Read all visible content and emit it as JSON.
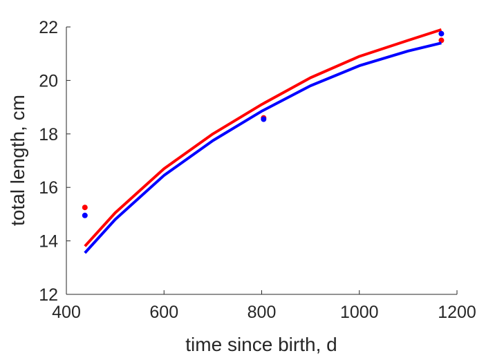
{
  "chart_data": {
    "type": "line",
    "title": "",
    "xlabel": "time since birth, d",
    "ylabel": "total length, cm",
    "xlim": [
      400,
      1200
    ],
    "ylim": [
      12,
      22
    ],
    "xticks": [
      400,
      600,
      800,
      1000,
      1200
    ],
    "yticks": [
      12,
      14,
      16,
      18,
      20,
      22
    ],
    "grid": false,
    "legend": "none",
    "series": [
      {
        "color": "#ff0000",
        "line": {
          "x": [
            438,
            500,
            600,
            700,
            800,
            900,
            1000,
            1100,
            1168
          ],
          "y": [
            13.8,
            15.05,
            16.7,
            18.0,
            19.1,
            20.1,
            20.9,
            21.5,
            21.9
          ]
        },
        "points": {
          "x": [
            438,
            804,
            1168
          ],
          "y": [
            15.25,
            18.6,
            21.5
          ]
        }
      },
      {
        "color": "#0000ff",
        "line": {
          "x": [
            438,
            500,
            600,
            700,
            800,
            900,
            1000,
            1100,
            1168
          ],
          "y": [
            13.55,
            14.8,
            16.45,
            17.75,
            18.85,
            19.8,
            20.55,
            21.1,
            21.4
          ]
        },
        "points": {
          "x": [
            438,
            804,
            1168
          ],
          "y": [
            14.95,
            18.55,
            21.75
          ]
        }
      }
    ]
  }
}
